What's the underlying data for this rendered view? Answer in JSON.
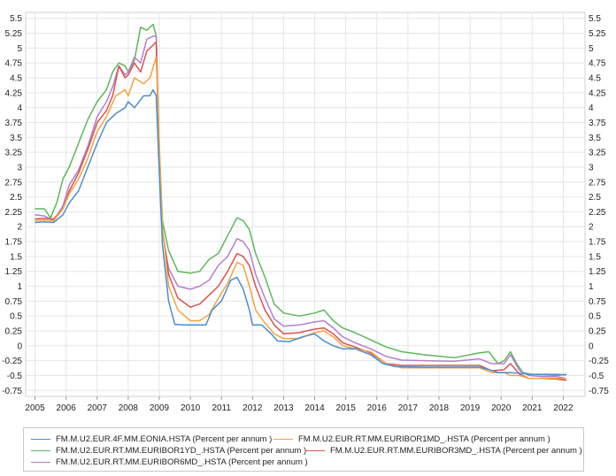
{
  "chart_data": {
    "type": "line",
    "title": "",
    "xlabel": "",
    "ylabel": "",
    "xlim": [
      2004.7,
      2022.7
    ],
    "ylim": [
      -0.85,
      5.6
    ],
    "x_ticks": [
      "2005",
      "2006",
      "2007",
      "2008",
      "2009",
      "2010",
      "2011",
      "2012",
      "2013",
      "2014",
      "2015",
      "2016",
      "2017",
      "2018",
      "2019",
      "2020",
      "2021",
      "2022"
    ],
    "y_ticks": [
      "5.5",
      "5.25",
      "5",
      "4.75",
      "4.5",
      "4.25",
      "4",
      "3.75",
      "3.5",
      "3.25",
      "3",
      "2.75",
      "2.5",
      "2.25",
      "2",
      "1.75",
      "1.5",
      "1.25",
      "1",
      "0.75",
      "0.5",
      "0.25",
      "0",
      "-0.25",
      "-0.5",
      "-0.75"
    ],
    "y_tick_values": [
      5.5,
      5.25,
      5,
      4.75,
      4.5,
      4.25,
      4,
      3.75,
      3.5,
      3.25,
      3,
      2.75,
      2.5,
      2.25,
      2,
      1.75,
      1.5,
      1.25,
      1,
      0.75,
      0.5,
      0.25,
      0,
      -0.25,
      -0.5,
      -0.75
    ],
    "grid": true,
    "legend_position": "bottom",
    "series": [
      {
        "name": "FM.M.U2.EUR.4F.MM.EONIA.HSTA (Percent per annum )",
        "color": "#4a8fcf",
        "x": [
          2005.0,
          2005.3,
          2005.6,
          2005.9,
          2006.1,
          2006.4,
          2006.7,
          2007.0,
          2007.3,
          2007.6,
          2007.9,
          2008.0,
          2008.2,
          2008.5,
          2008.7,
          2008.8,
          2008.9,
          2009.0,
          2009.1,
          2009.3,
          2009.5,
          2009.8,
          2010.2,
          2010.5,
          2010.7,
          2011.0,
          2011.3,
          2011.5,
          2011.7,
          2011.9,
          2012.0,
          2012.3,
          2012.6,
          2012.8,
          2013.2,
          2013.6,
          2014.0,
          2014.3,
          2014.6,
          2014.9,
          2015.3,
          2015.8,
          2016.2,
          2016.6,
          2017.5,
          2018.5,
          2019.3,
          2019.6,
          2019.9,
          2020.2,
          2020.6,
          2020.9,
          2021.3,
          2021.8,
          2022.1
        ],
        "y": [
          2.07,
          2.08,
          2.07,
          2.2,
          2.4,
          2.6,
          3.0,
          3.4,
          3.75,
          3.9,
          4.0,
          4.1,
          4.0,
          4.2,
          4.2,
          4.3,
          4.2,
          2.9,
          1.7,
          0.75,
          0.36,
          0.35,
          0.35,
          0.35,
          0.6,
          0.75,
          1.1,
          1.15,
          0.95,
          0.6,
          0.35,
          0.35,
          0.2,
          0.08,
          0.07,
          0.15,
          0.2,
          0.08,
          0.0,
          -0.05,
          -0.05,
          -0.15,
          -0.3,
          -0.35,
          -0.36,
          -0.36,
          -0.36,
          -0.4,
          -0.45,
          -0.45,
          -0.46,
          -0.48,
          -0.48,
          -0.48,
          -0.49
        ]
      },
      {
        "name": "FM.M.U2.EUR.RT.MM.EURIBOR1MD_.HSTA (Percent per annum )",
        "color": "#f5a340",
        "x": [
          2005.0,
          2005.3,
          2005.6,
          2005.9,
          2006.1,
          2006.4,
          2006.7,
          2007.0,
          2007.3,
          2007.6,
          2007.9,
          2008.0,
          2008.2,
          2008.5,
          2008.7,
          2008.9,
          2009.0,
          2009.1,
          2009.3,
          2009.6,
          2010.0,
          2010.3,
          2010.6,
          2010.9,
          2011.2,
          2011.5,
          2011.7,
          2011.9,
          2012.1,
          2012.4,
          2012.7,
          2013.0,
          2013.5,
          2014.0,
          2014.3,
          2014.6,
          2014.9,
          2015.3,
          2015.8,
          2016.3,
          2016.8,
          2017.5,
          2018.5,
          2019.3,
          2019.7,
          2020.1,
          2020.3,
          2020.6,
          2020.9,
          2021.3,
          2021.8,
          2022.1
        ],
        "y": [
          2.1,
          2.11,
          2.1,
          2.3,
          2.55,
          2.8,
          3.15,
          3.6,
          3.85,
          4.2,
          4.3,
          4.2,
          4.5,
          4.4,
          4.5,
          4.85,
          3.4,
          2.0,
          1.0,
          0.6,
          0.42,
          0.42,
          0.52,
          0.8,
          1.05,
          1.4,
          1.35,
          1.0,
          0.6,
          0.38,
          0.2,
          0.12,
          0.12,
          0.22,
          0.25,
          0.15,
          0.0,
          -0.05,
          -0.1,
          -0.3,
          -0.37,
          -0.37,
          -0.37,
          -0.37,
          -0.45,
          -0.45,
          -0.5,
          -0.5,
          -0.55,
          -0.55,
          -0.55,
          -0.55
        ]
      },
      {
        "name": "FM.M.U2.EUR.RT.MM.EURIBOR1YD_.HSTA (Percent per annum )",
        "color": "#5cb85c",
        "x": [
          2005.0,
          2005.3,
          2005.5,
          2005.7,
          2005.9,
          2006.1,
          2006.4,
          2006.7,
          2007.0,
          2007.3,
          2007.5,
          2007.7,
          2007.9,
          2008.0,
          2008.2,
          2008.4,
          2008.6,
          2008.8,
          2008.9,
          2009.0,
          2009.1,
          2009.3,
          2009.6,
          2010.0,
          2010.3,
          2010.6,
          2010.9,
          2011.2,
          2011.5,
          2011.7,
          2011.9,
          2012.1,
          2012.4,
          2012.7,
          2013.0,
          2013.5,
          2014.0,
          2014.3,
          2014.6,
          2014.9,
          2015.3,
          2015.8,
          2016.3,
          2016.8,
          2017.5,
          2018.5,
          2019.3,
          2019.6,
          2019.9,
          2020.1,
          2020.3,
          2020.5,
          2020.7,
          2021.0,
          2021.4,
          2021.8,
          2022.1
        ],
        "y": [
          2.3,
          2.3,
          2.15,
          2.4,
          2.8,
          3.0,
          3.4,
          3.8,
          4.1,
          4.3,
          4.6,
          4.75,
          4.7,
          4.6,
          4.8,
          5.35,
          5.3,
          5.4,
          5.2,
          3.3,
          2.1,
          1.6,
          1.25,
          1.22,
          1.25,
          1.45,
          1.55,
          1.85,
          2.15,
          2.1,
          1.95,
          1.55,
          1.15,
          0.7,
          0.55,
          0.5,
          0.55,
          0.6,
          0.42,
          0.3,
          0.22,
          0.1,
          -0.02,
          -0.1,
          -0.15,
          -0.2,
          -0.12,
          -0.1,
          -0.3,
          -0.25,
          -0.1,
          -0.3,
          -0.45,
          -0.48,
          -0.49,
          -0.5,
          -0.48
        ]
      },
      {
        "name": "FM.M.U2.EUR.RT.MM.EURIBOR3MD_.HSTA (Percent per annum )",
        "color": "#d9534f",
        "x": [
          2005.0,
          2005.3,
          2005.6,
          2005.9,
          2006.1,
          2006.4,
          2006.7,
          2007.0,
          2007.3,
          2007.5,
          2007.7,
          2007.9,
          2008.0,
          2008.2,
          2008.4,
          2008.6,
          2008.8,
          2008.9,
          2009.0,
          2009.1,
          2009.3,
          2009.6,
          2010.0,
          2010.3,
          2010.6,
          2010.9,
          2011.2,
          2011.5,
          2011.7,
          2011.9,
          2012.1,
          2012.4,
          2012.7,
          2013.0,
          2013.5,
          2014.0,
          2014.3,
          2014.6,
          2014.9,
          2015.3,
          2015.8,
          2016.3,
          2016.8,
          2017.5,
          2018.5,
          2019.3,
          2019.7,
          2020.1,
          2020.3,
          2020.6,
          2020.9,
          2021.3,
          2021.8,
          2022.1
        ],
        "y": [
          2.13,
          2.14,
          2.13,
          2.3,
          2.6,
          2.9,
          3.3,
          3.75,
          3.95,
          4.2,
          4.7,
          4.5,
          4.55,
          4.75,
          4.6,
          4.95,
          5.05,
          5.1,
          3.0,
          1.95,
          1.2,
          0.8,
          0.65,
          0.7,
          0.85,
          1.0,
          1.25,
          1.55,
          1.5,
          1.35,
          1.0,
          0.6,
          0.35,
          0.2,
          0.22,
          0.28,
          0.3,
          0.2,
          0.05,
          -0.02,
          -0.12,
          -0.3,
          -0.33,
          -0.33,
          -0.33,
          -0.33,
          -0.42,
          -0.4,
          -0.3,
          -0.48,
          -0.55,
          -0.55,
          -0.56,
          -0.58
        ]
      },
      {
        "name": "FM.M.U2.EUR.RT.MM.EURIBOR6MD_.HSTA (Percent per annum )",
        "color": "#b47fcf",
        "x": [
          2005.0,
          2005.3,
          2005.6,
          2005.9,
          2006.1,
          2006.4,
          2006.7,
          2007.0,
          2007.3,
          2007.5,
          2007.7,
          2007.9,
          2008.0,
          2008.2,
          2008.4,
          2008.6,
          2008.8,
          2008.9,
          2009.0,
          2009.1,
          2009.3,
          2009.6,
          2010.0,
          2010.3,
          2010.6,
          2010.9,
          2011.2,
          2011.5,
          2011.7,
          2011.9,
          2012.1,
          2012.4,
          2012.7,
          2013.0,
          2013.5,
          2014.0,
          2014.3,
          2014.6,
          2014.9,
          2015.3,
          2015.8,
          2016.3,
          2016.8,
          2017.5,
          2018.5,
          2019.3,
          2019.7,
          2020.1,
          2020.3,
          2020.6,
          2020.9,
          2021.3,
          2021.8,
          2022.1
        ],
        "y": [
          2.2,
          2.18,
          2.1,
          2.35,
          2.7,
          2.95,
          3.35,
          3.85,
          4.1,
          4.35,
          4.7,
          4.55,
          4.6,
          4.85,
          4.75,
          5.15,
          5.2,
          5.2,
          3.1,
          1.9,
          1.3,
          1.0,
          0.95,
          1.0,
          1.1,
          1.35,
          1.5,
          1.8,
          1.75,
          1.6,
          1.2,
          0.8,
          0.45,
          0.33,
          0.35,
          0.4,
          0.42,
          0.3,
          0.15,
          0.05,
          -0.05,
          -0.18,
          -0.24,
          -0.25,
          -0.26,
          -0.22,
          -0.3,
          -0.3,
          -0.15,
          -0.42,
          -0.5,
          -0.52,
          -0.52,
          -0.55
        ]
      }
    ]
  }
}
